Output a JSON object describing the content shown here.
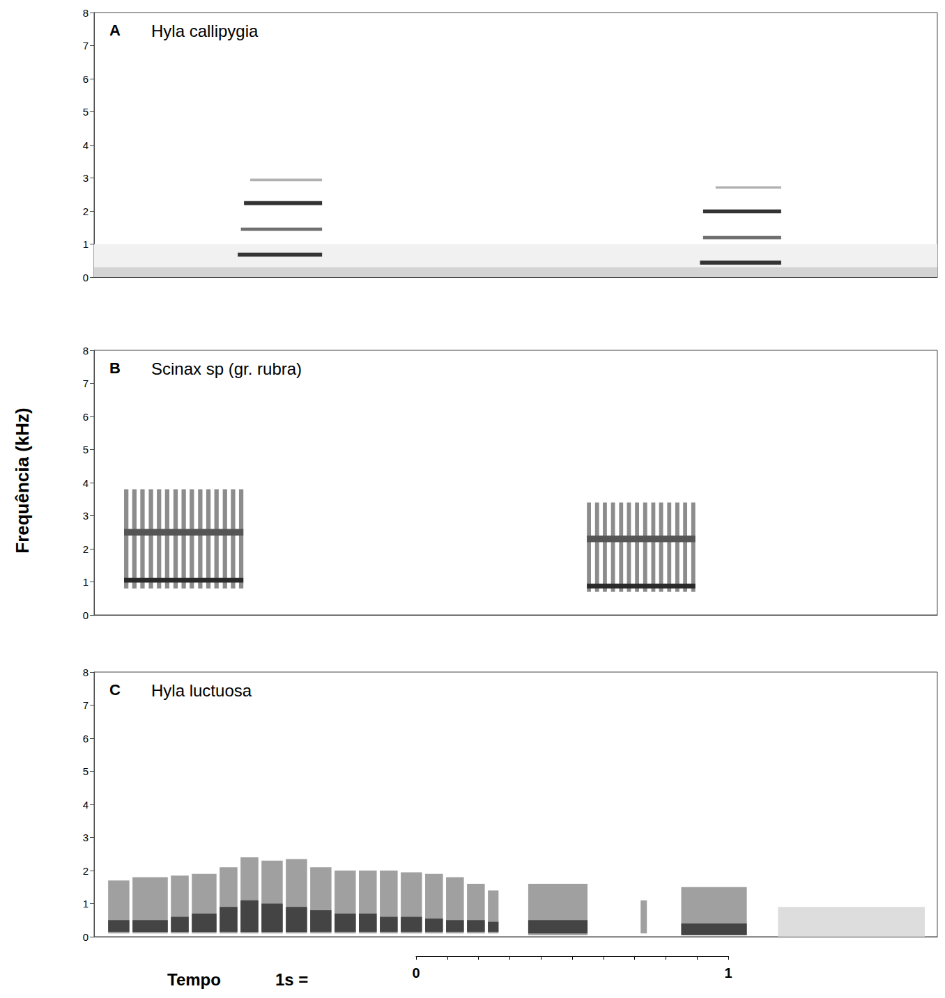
{
  "ylabel": "Frequência (kHz)",
  "chart_data": [
    {
      "type": "spectrogram",
      "letter": "A",
      "title": "Hyla callipygia",
      "xlim": [
        0,
        2.7
      ],
      "ylim": [
        0,
        8
      ],
      "yticks": [
        0,
        1,
        2,
        3,
        4,
        5,
        6,
        7,
        8
      ],
      "tick_labels": "y",
      "bands": [
        {
          "color": "#f1f1f1",
          "rects": [
            [
              0,
              2.7,
              0,
              1.0
            ]
          ]
        },
        {
          "color": "#d4d4d4",
          "rects": [
            [
              0,
              2.7,
              0,
              0.3
            ]
          ]
        },
        {
          "color": "#b0b0b0",
          "rects": [
            [
              0.5,
              0.73,
              2.9,
              2.98
            ],
            [
              1.99,
              2.2,
              2.68,
              2.75
            ]
          ]
        },
        {
          "color": "#707070",
          "rects": [
            [
              0.47,
              0.73,
              1.4,
              1.5
            ],
            [
              1.95,
              2.2,
              1.15,
              1.25
            ]
          ]
        },
        {
          "color": "#333333",
          "rects": [
            [
              0.46,
              0.73,
              0.62,
              0.74
            ],
            [
              0.48,
              0.73,
              2.18,
              2.3
            ],
            [
              1.94,
              2.2,
              0.38,
              0.5
            ],
            [
              1.95,
              2.2,
              1.93,
              2.05
            ]
          ]
        }
      ]
    },
    {
      "type": "spectrogram",
      "letter": "B",
      "title": "Scinax sp (gr. rubra)",
      "xlim": [
        0,
        2.7
      ],
      "ylim": [
        0,
        8
      ],
      "yticks": [
        0,
        1,
        2,
        3,
        4,
        5,
        6,
        7,
        8
      ],
      "tick_labels": "y",
      "bands": [
        {
          "color": "#8c8c8c",
          "rects": [
            [
              0.096,
              0.11,
              0.8,
              3.8
            ],
            [
              0.122,
              0.136,
              0.8,
              3.8
            ],
            [
              0.148,
              0.162,
              0.8,
              3.8
            ],
            [
              0.175,
              0.189,
              0.8,
              3.8
            ],
            [
              0.201,
              0.215,
              0.8,
              3.8
            ],
            [
              0.227,
              0.241,
              0.8,
              3.8
            ],
            [
              0.254,
              0.268,
              0.8,
              3.8
            ],
            [
              0.28,
              0.294,
              0.8,
              3.8
            ],
            [
              0.306,
              0.32,
              0.8,
              3.8
            ],
            [
              0.333,
              0.347,
              0.8,
              3.8
            ],
            [
              0.359,
              0.373,
              0.8,
              3.8
            ],
            [
              0.385,
              0.399,
              0.8,
              3.8
            ],
            [
              0.412,
              0.426,
              0.8,
              3.8
            ],
            [
              0.438,
              0.452,
              0.8,
              3.8
            ],
            [
              0.464,
              0.478,
              0.8,
              3.8
            ],
            [
              1.578,
              1.591,
              0.7,
              3.4
            ],
            [
              1.604,
              1.617,
              0.7,
              3.4
            ],
            [
              1.629,
              1.642,
              0.7,
              3.4
            ],
            [
              1.655,
              1.668,
              0.7,
              3.4
            ],
            [
              1.681,
              1.694,
              0.7,
              3.4
            ],
            [
              1.706,
              1.719,
              0.7,
              3.4
            ],
            [
              1.732,
              1.745,
              0.7,
              3.4
            ],
            [
              1.758,
              1.771,
              0.7,
              3.4
            ],
            [
              1.784,
              1.797,
              0.7,
              3.4
            ],
            [
              1.809,
              1.822,
              0.7,
              3.4
            ],
            [
              1.835,
              1.848,
              0.7,
              3.4
            ],
            [
              1.861,
              1.874,
              0.7,
              3.4
            ],
            [
              1.886,
              1.899,
              0.7,
              3.4
            ],
            [
              1.912,
              1.925,
              0.7,
              3.4
            ]
          ]
        },
        {
          "color": "#555555",
          "rects": [
            [
              0.096,
              0.478,
              2.4,
              2.6
            ],
            [
              1.578,
              1.925,
              2.2,
              2.4
            ]
          ]
        },
        {
          "color": "#2a2a2a",
          "rects": [
            [
              0.096,
              0.478,
              0.98,
              1.12
            ],
            [
              1.578,
              1.925,
              0.8,
              0.95
            ]
          ]
        }
      ]
    },
    {
      "type": "spectrogram",
      "letter": "C",
      "title": "Hyla luctuosa",
      "xlim": [
        0,
        2.7
      ],
      "ylim": [
        0,
        8
      ],
      "yticks": [
        0,
        1,
        2,
        3,
        4,
        5,
        6,
        7,
        8
      ],
      "tick_labels": "y",
      "bands": [
        {
          "color": "#dddddd",
          "rects": [
            [
              2.19,
              2.66,
              0,
              0.9
            ]
          ]
        },
        {
          "color": "#a0a0a0",
          "rects": [
            [
              0.045,
              0.113,
              0.1,
              1.7
            ],
            [
              0.123,
              0.236,
              0.1,
              1.8
            ],
            [
              0.246,
              0.303,
              0.1,
              1.85
            ],
            [
              0.313,
              0.392,
              0.1,
              1.9
            ],
            [
              0.402,
              0.459,
              0.1,
              2.1
            ],
            [
              0.469,
              0.526,
              0.1,
              2.4
            ],
            [
              0.536,
              0.604,
              0.1,
              2.3
            ],
            [
              0.614,
              0.682,
              0.1,
              2.35
            ],
            [
              0.692,
              0.76,
              0.1,
              2.1
            ],
            [
              0.77,
              0.838,
              0.1,
              2.0
            ],
            [
              0.848,
              0.905,
              0.1,
              2.0
            ],
            [
              0.915,
              0.972,
              0.1,
              2.0
            ],
            [
              0.982,
              1.05,
              0.1,
              1.95
            ],
            [
              1.06,
              1.117,
              0.1,
              1.9
            ],
            [
              1.127,
              1.184,
              0.1,
              1.8
            ],
            [
              1.194,
              1.251,
              0.1,
              1.6
            ],
            [
              1.261,
              1.295,
              0.1,
              1.4
            ],
            [
              1.39,
              1.58,
              0.05,
              1.6
            ],
            [
              1.75,
              1.77,
              0.1,
              1.1
            ],
            [
              1.88,
              2.09,
              0.05,
              1.5
            ]
          ]
        },
        {
          "color": "#444444",
          "rects": [
            [
              0.045,
              0.113,
              0.15,
              0.5
            ],
            [
              0.123,
              0.236,
              0.15,
              0.5
            ],
            [
              0.246,
              0.303,
              0.15,
              0.6
            ],
            [
              0.313,
              0.392,
              0.15,
              0.7
            ],
            [
              0.402,
              0.459,
              0.15,
              0.9
            ],
            [
              0.469,
              0.526,
              0.15,
              1.1
            ],
            [
              0.536,
              0.604,
              0.15,
              1.0
            ],
            [
              0.614,
              0.682,
              0.15,
              0.9
            ],
            [
              0.692,
              0.76,
              0.15,
              0.8
            ],
            [
              0.77,
              0.838,
              0.15,
              0.7
            ],
            [
              0.848,
              0.905,
              0.15,
              0.7
            ],
            [
              0.915,
              0.972,
              0.15,
              0.6
            ],
            [
              0.982,
              1.05,
              0.15,
              0.6
            ],
            [
              1.06,
              1.117,
              0.15,
              0.55
            ],
            [
              1.127,
              1.184,
              0.15,
              0.5
            ],
            [
              1.194,
              1.251,
              0.15,
              0.5
            ],
            [
              1.261,
              1.295,
              0.15,
              0.45
            ],
            [
              1.39,
              1.58,
              0.1,
              0.5
            ],
            [
              1.88,
              2.09,
              0.05,
              0.4
            ]
          ]
        }
      ]
    }
  ],
  "scale_bar": {
    "label": "Tempo",
    "text": "1s =",
    "range": [
      0,
      1
    ],
    "ticks": [
      0,
      0.1,
      0.2,
      0.3,
      0.4,
      0.5,
      0.6,
      0.7,
      0.8,
      0.9,
      1
    ],
    "tick_labels": [
      0,
      1
    ]
  }
}
